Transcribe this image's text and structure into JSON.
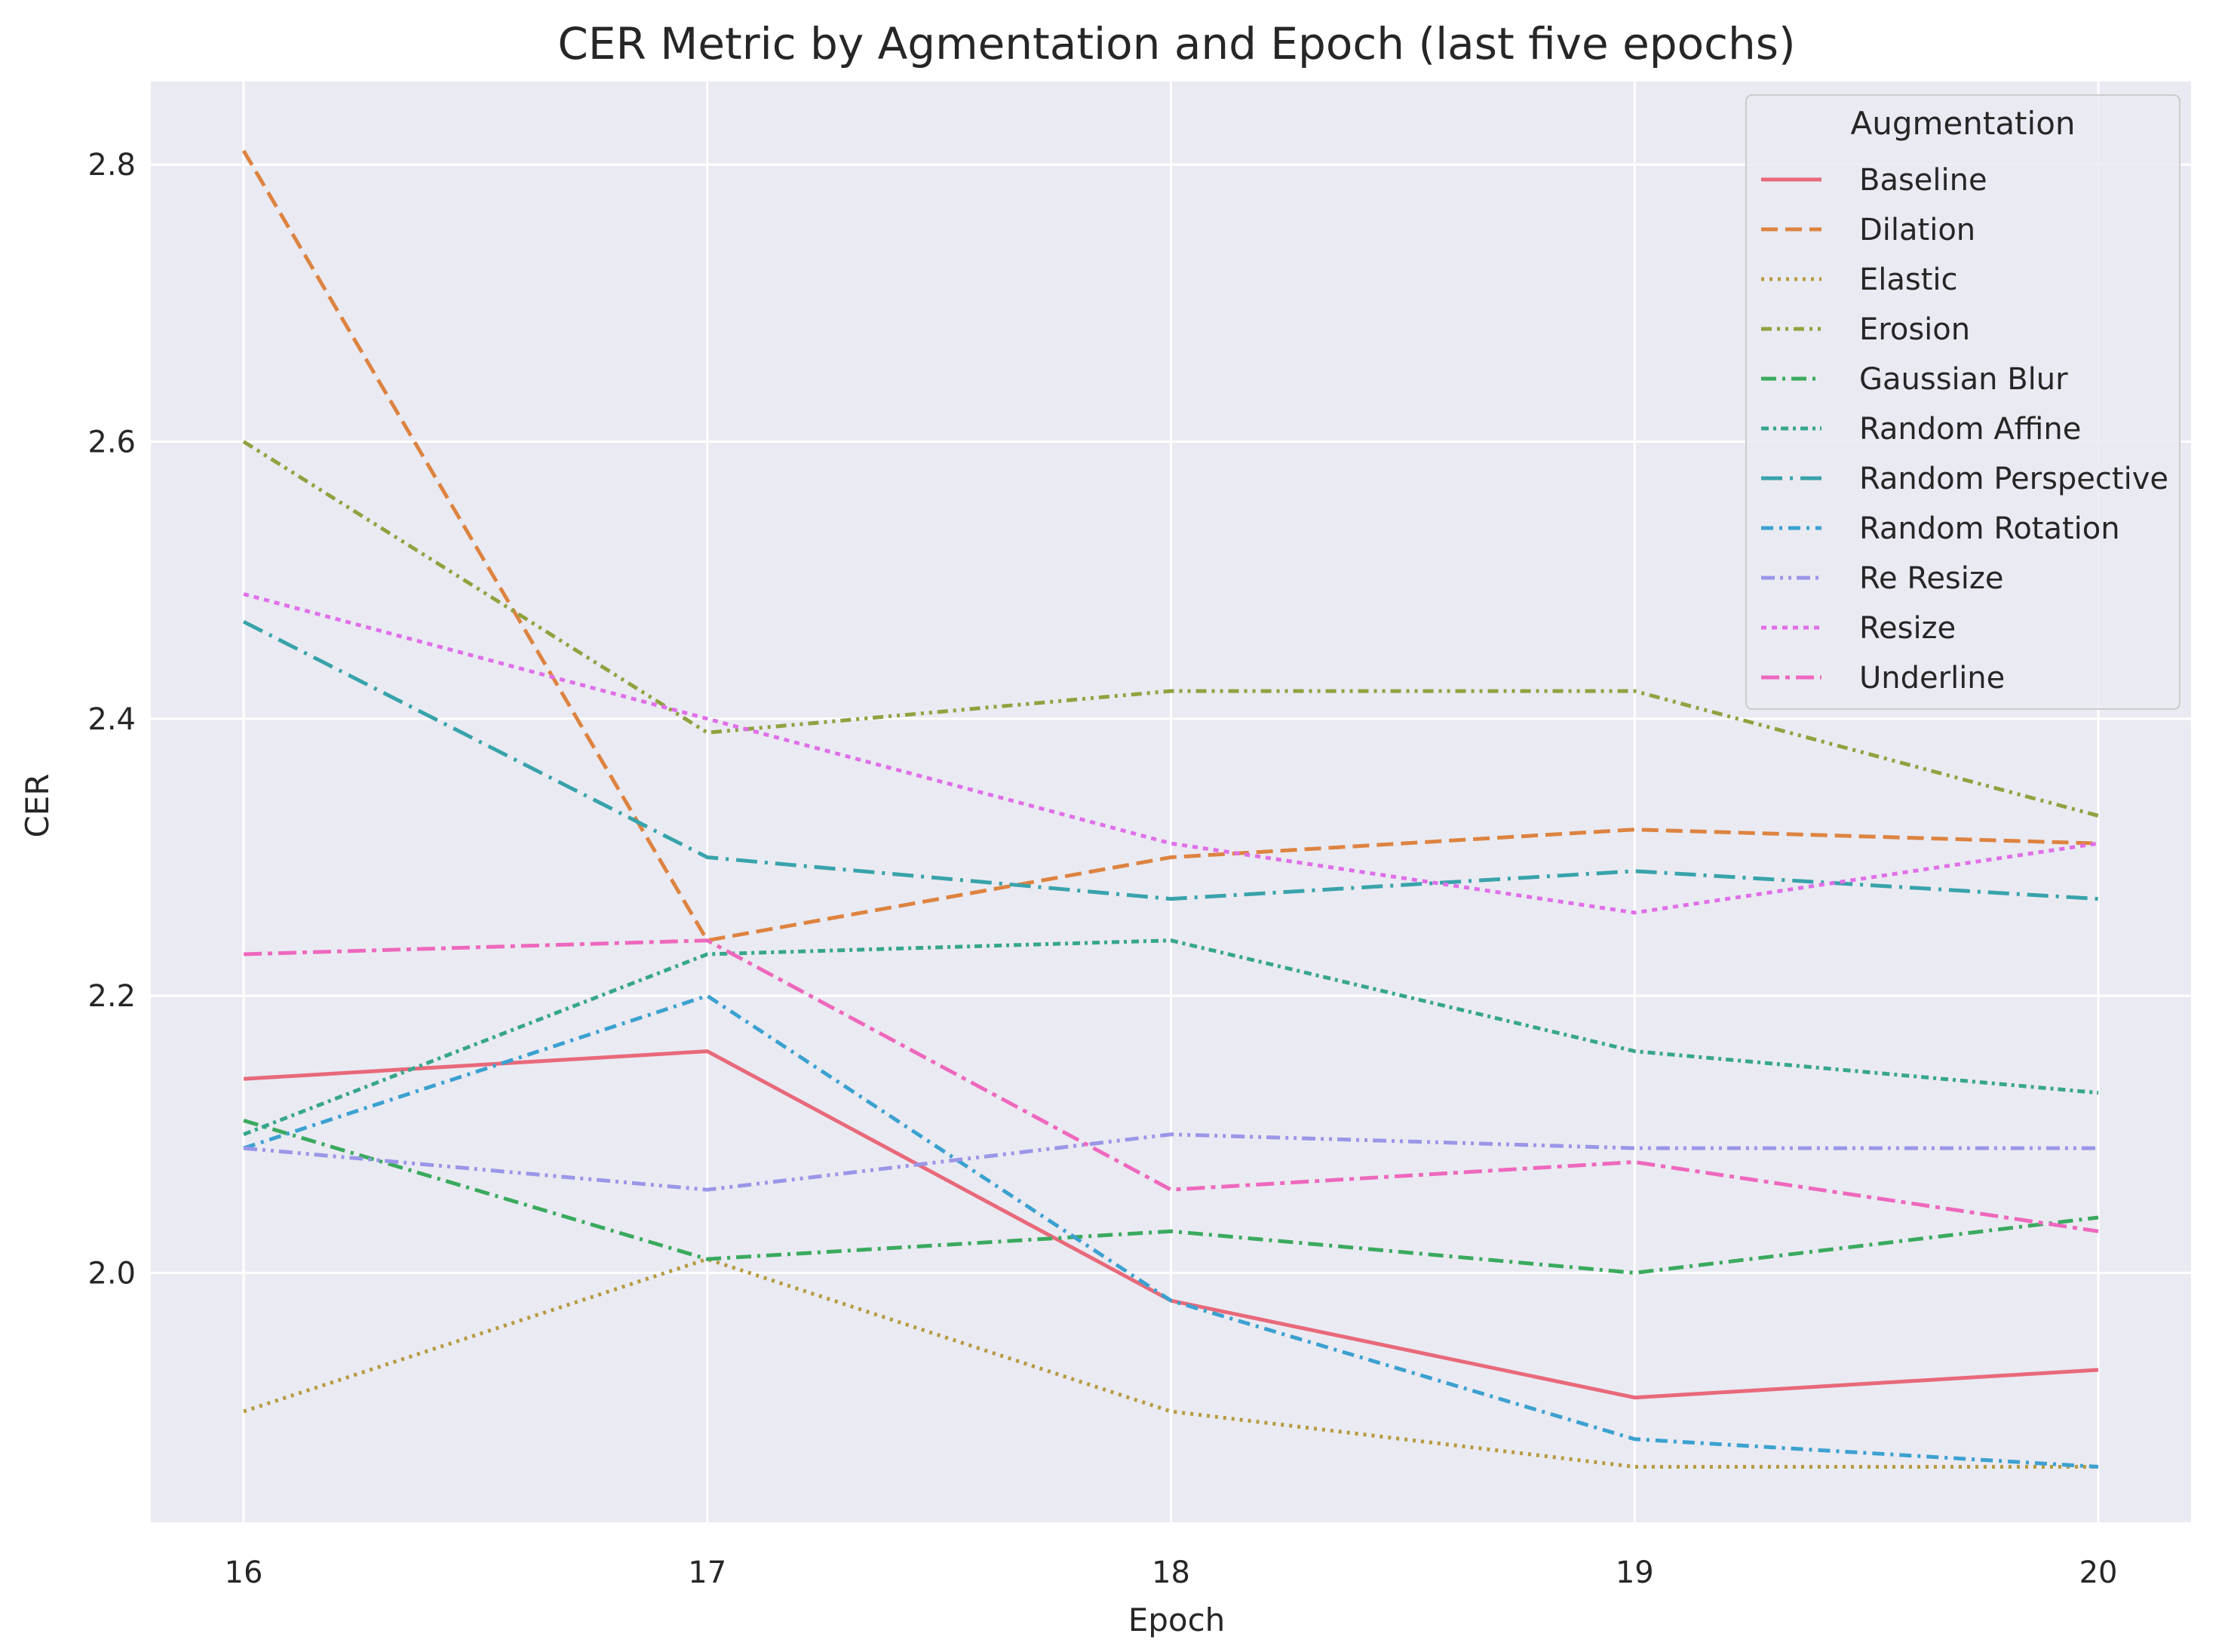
{
  "chart_data": {
    "type": "line",
    "title": "CER Metric by Agmentation and Epoch (last five epochs)",
    "xlabel": "Epoch",
    "ylabel": "CER",
    "x": [
      16,
      17,
      18,
      19,
      20
    ],
    "xlim": [
      15.8,
      20.2
    ],
    "ylim": [
      1.82,
      2.86
    ],
    "yticks": [
      2.0,
      2.2,
      2.4,
      2.6,
      2.8
    ],
    "ytick_labels": [
      "2.0",
      "2.2",
      "2.4",
      "2.6",
      "2.8"
    ],
    "xtick_labels": [
      "16",
      "17",
      "18",
      "19",
      "20"
    ],
    "grid": true,
    "legend_title": "Augmentation",
    "legend_position": "top-right",
    "series": [
      {
        "name": "Baseline",
        "color": "#e8697a",
        "dash": "solid",
        "values": [
          2.14,
          2.16,
          1.98,
          1.91,
          1.93
        ]
      },
      {
        "name": "Dilation",
        "color": "#dd8340",
        "dash": "dashed",
        "values": [
          2.81,
          2.24,
          2.3,
          2.32,
          2.31
        ]
      },
      {
        "name": "Elastic",
        "color": "#b69a3f",
        "dash": "dotted",
        "values": [
          1.9,
          2.01,
          1.9,
          1.86,
          1.86
        ]
      },
      {
        "name": "Erosion",
        "color": "#8fa23f",
        "dash": "dashdotdot",
        "values": [
          2.6,
          2.39,
          2.42,
          2.42,
          2.33
        ]
      },
      {
        "name": "Gaussian Blur",
        "color": "#3aaa5e",
        "dash": "dashdot",
        "values": [
          2.11,
          2.01,
          2.03,
          2.0,
          2.04
        ]
      },
      {
        "name": "Random Affine",
        "color": "#36a68c",
        "dash": "densedashdot",
        "values": [
          2.1,
          2.23,
          2.24,
          2.16,
          2.13
        ]
      },
      {
        "name": "Random Perspective",
        "color": "#38a3aa",
        "dash": "longdashdot",
        "values": [
          2.47,
          2.3,
          2.27,
          2.29,
          2.27
        ]
      },
      {
        "name": "Random Rotation",
        "color": "#3ba1d0",
        "dash": "dashdot2",
        "values": [
          2.09,
          2.2,
          1.98,
          1.88,
          1.86
        ]
      },
      {
        "name": "Re Resize",
        "color": "#9a96e8",
        "dash": "dashdotdot2",
        "values": [
          2.09,
          2.06,
          2.1,
          2.09,
          2.09
        ]
      },
      {
        "name": "Resize",
        "color": "#df6fe8",
        "dash": "shortdot",
        "values": [
          2.49,
          2.4,
          2.31,
          2.26,
          2.31
        ]
      },
      {
        "name": "Underline",
        "color": "#ee68bd",
        "dash": "dashdotlong",
        "values": [
          2.23,
          2.24,
          2.06,
          2.08,
          2.03
        ]
      }
    ]
  }
}
